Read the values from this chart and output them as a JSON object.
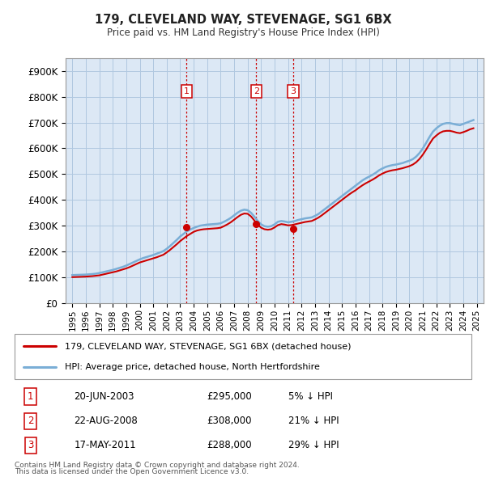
{
  "title": "179, CLEVELAND WAY, STEVENAGE, SG1 6BX",
  "subtitle": "Price paid vs. HM Land Registry's House Price Index (HPI)",
  "legend_line1": "179, CLEVELAND WAY, STEVENAGE, SG1 6BX (detached house)",
  "legend_line2": "HPI: Average price, detached house, North Hertfordshire",
  "footer1": "Contains HM Land Registry data © Crown copyright and database right 2024.",
  "footer2": "This data is licensed under the Open Government Licence v3.0.",
  "sales": [
    {
      "num": 1,
      "date": "20-JUN-2003",
      "date_x": 2003.47,
      "price": 295000,
      "label": "5% ↓ HPI"
    },
    {
      "num": 2,
      "date": "22-AUG-2008",
      "date_x": 2008.64,
      "price": 308000,
      "label": "21% ↓ HPI"
    },
    {
      "num": 3,
      "date": "17-MAY-2011",
      "date_x": 2011.38,
      "price": 288000,
      "label": "29% ↓ HPI"
    }
  ],
  "hpi_color": "#7aaed6",
  "price_color": "#cc0000",
  "vline_color": "#cc0000",
  "marker_color": "#cc0000",
  "background_color": "#ffffff",
  "chart_bg": "#dce8f5",
  "grid_color": "#b0c8e0",
  "ylim": [
    0,
    950000
  ],
  "xlim": [
    1994.5,
    2025.5
  ],
  "yticks": [
    0,
    100000,
    200000,
    300000,
    400000,
    500000,
    600000,
    700000,
    800000,
    900000
  ],
  "ytick_labels": [
    "£0",
    "£100K",
    "£200K",
    "£300K",
    "£400K",
    "£500K",
    "£600K",
    "£700K",
    "£800K",
    "£900K"
  ],
  "xticks": [
    1995,
    1996,
    1997,
    1998,
    1999,
    2000,
    2001,
    2002,
    2003,
    2004,
    2005,
    2006,
    2007,
    2008,
    2009,
    2010,
    2011,
    2012,
    2013,
    2014,
    2015,
    2016,
    2017,
    2018,
    2019,
    2020,
    2021,
    2022,
    2023,
    2024,
    2025
  ],
  "hpi_x": [
    1995.0,
    1995.25,
    1995.5,
    1995.75,
    1996.0,
    1996.25,
    1996.5,
    1996.75,
    1997.0,
    1997.25,
    1997.5,
    1997.75,
    1998.0,
    1998.25,
    1998.5,
    1998.75,
    1999.0,
    1999.25,
    1999.5,
    1999.75,
    2000.0,
    2000.25,
    2000.5,
    2000.75,
    2001.0,
    2001.25,
    2001.5,
    2001.75,
    2002.0,
    2002.25,
    2002.5,
    2002.75,
    2003.0,
    2003.25,
    2003.5,
    2003.75,
    2004.0,
    2004.25,
    2004.5,
    2004.75,
    2005.0,
    2005.25,
    2005.5,
    2005.75,
    2006.0,
    2006.25,
    2006.5,
    2006.75,
    2007.0,
    2007.25,
    2007.5,
    2007.75,
    2008.0,
    2008.25,
    2008.5,
    2008.75,
    2009.0,
    2009.25,
    2009.5,
    2009.75,
    2010.0,
    2010.25,
    2010.5,
    2010.75,
    2011.0,
    2011.25,
    2011.5,
    2011.75,
    2012.0,
    2012.25,
    2012.5,
    2012.75,
    2013.0,
    2013.25,
    2013.5,
    2013.75,
    2014.0,
    2014.25,
    2014.5,
    2014.75,
    2015.0,
    2015.25,
    2015.5,
    2015.75,
    2016.0,
    2016.25,
    2016.5,
    2016.75,
    2017.0,
    2017.25,
    2017.5,
    2017.75,
    2018.0,
    2018.25,
    2018.5,
    2018.75,
    2019.0,
    2019.25,
    2019.5,
    2019.75,
    2020.0,
    2020.25,
    2020.5,
    2020.75,
    2021.0,
    2021.25,
    2021.5,
    2021.75,
    2022.0,
    2022.25,
    2022.5,
    2022.75,
    2023.0,
    2023.25,
    2023.5,
    2023.75,
    2024.0,
    2024.25,
    2024.5,
    2024.75
  ],
  "hpi_y": [
    108000,
    108500,
    109000,
    109500,
    110000,
    111000,
    112000,
    113500,
    116000,
    119000,
    122000,
    125000,
    128000,
    132000,
    136000,
    140000,
    145000,
    151000,
    157000,
    163000,
    169000,
    174000,
    178000,
    182000,
    186000,
    191000,
    196000,
    201000,
    210000,
    221000,
    233000,
    245000,
    258000,
    268000,
    278000,
    285000,
    291000,
    296000,
    300000,
    302000,
    304000,
    305000,
    306000,
    307000,
    309000,
    315000,
    322000,
    330000,
    340000,
    350000,
    358000,
    362000,
    360000,
    350000,
    335000,
    318000,
    305000,
    298000,
    296000,
    298000,
    305000,
    315000,
    318000,
    316000,
    313000,
    315000,
    318000,
    322000,
    325000,
    328000,
    330000,
    332000,
    338000,
    345000,
    355000,
    365000,
    375000,
    385000,
    395000,
    405000,
    415000,
    425000,
    435000,
    445000,
    455000,
    465000,
    475000,
    483000,
    490000,
    497000,
    505000,
    515000,
    522000,
    528000,
    532000,
    535000,
    537000,
    540000,
    543000,
    548000,
    552000,
    558000,
    568000,
    582000,
    600000,
    622000,
    645000,
    665000,
    678000,
    688000,
    695000,
    698000,
    698000,
    695000,
    692000,
    690000,
    695000,
    700000,
    705000,
    710000
  ],
  "price_y": [
    100000,
    100500,
    101000,
    101500,
    102000,
    103000,
    104000,
    105500,
    107000,
    110000,
    113000,
    116000,
    119000,
    122000,
    126000,
    130000,
    134000,
    139000,
    145000,
    151000,
    157000,
    161000,
    165000,
    169000,
    173000,
    177000,
    182000,
    187000,
    196000,
    206000,
    217000,
    228000,
    240000,
    250000,
    260000,
    268000,
    276000,
    281000,
    284000,
    286000,
    287000,
    288000,
    289000,
    290000,
    292000,
    298000,
    305000,
    313000,
    323000,
    333000,
    342000,
    347000,
    346000,
    336000,
    320000,
    304000,
    292000,
    286000,
    284000,
    286000,
    293000,
    302000,
    306000,
    304000,
    301000,
    302000,
    305000,
    308000,
    311000,
    314000,
    316000,
    318000,
    324000,
    331000,
    340000,
    350000,
    360000,
    370000,
    380000,
    390000,
    400000,
    410000,
    420000,
    429000,
    437000,
    447000,
    456000,
    464000,
    471000,
    478000,
    486000,
    495000,
    502000,
    508000,
    512000,
    515000,
    517000,
    520000,
    523000,
    527000,
    531000,
    537000,
    546000,
    559000,
    576000,
    596000,
    618000,
    638000,
    650000,
    660000,
    666000,
    668000,
    668000,
    665000,
    661000,
    659000,
    663000,
    668000,
    674000,
    678000
  ]
}
